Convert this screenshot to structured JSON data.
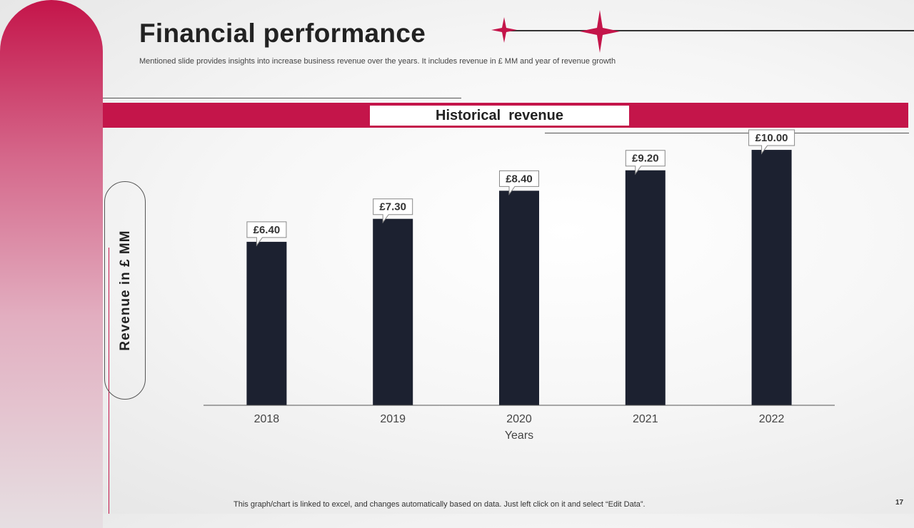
{
  "title": "Financial performance",
  "subtitle": "Mentioned slide provides insights into increase business revenue over the years. It includes revenue in £ MM  and year of revenue growth",
  "banner_title": "Historical  revenue",
  "footer_note": "This graph/chart is linked to excel,  and changes automatically based on data. Just left click on it and select “Edit Data”.",
  "page_number": "17",
  "colors": {
    "accent": "#c4154a",
    "bar": "#1c2130",
    "text": "#222222"
  },
  "chart_data": {
    "type": "bar",
    "title": "Historical  revenue",
    "categories": [
      "2018",
      "2019",
      "2020",
      "2021",
      "2022"
    ],
    "values": [
      6.4,
      7.3,
      8.4,
      9.2,
      10.0
    ],
    "data_labels": [
      "£6.40",
      "£7.30",
      "£8.40",
      "£9.20",
      "£10.00"
    ],
    "xlabel": "Years",
    "ylabel": "Revenue in £ MM",
    "ylim": [
      0,
      10.7
    ],
    "grid": false
  }
}
